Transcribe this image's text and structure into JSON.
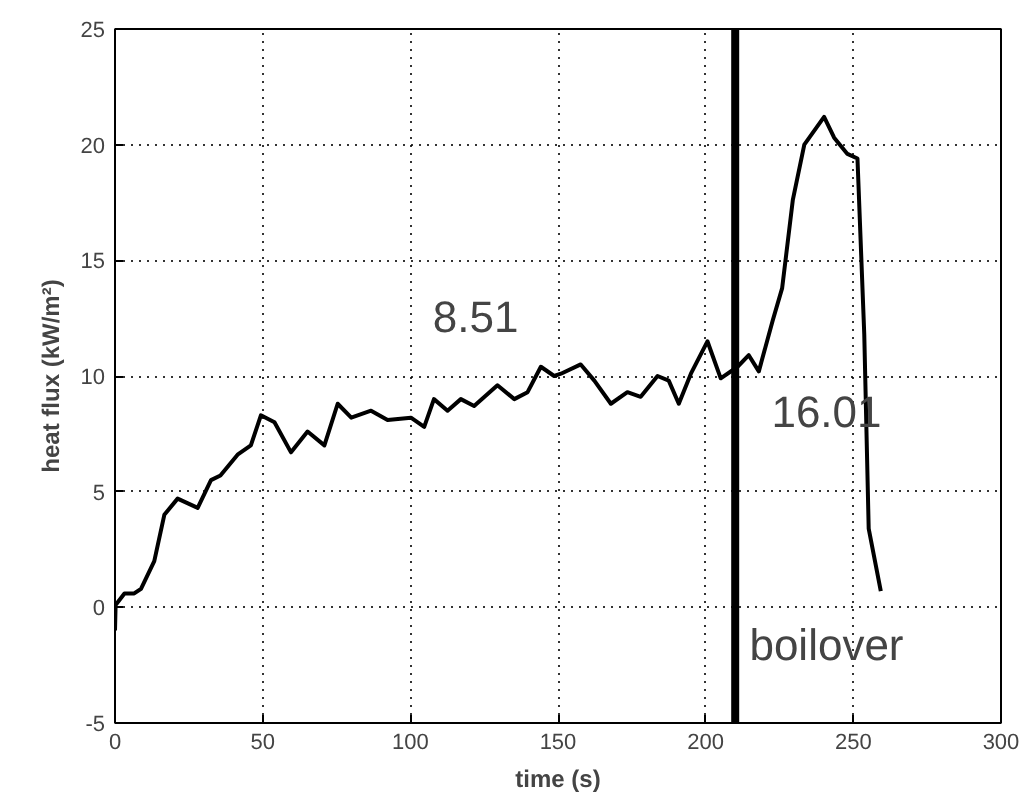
{
  "chart_data": {
    "type": "line",
    "xlabel": "time (s)",
    "ylabel": "heat flux (kW/m²)",
    "xlim": [
      0,
      300
    ],
    "ylim": [
      -5,
      25
    ],
    "xticks": [
      0,
      50,
      100,
      150,
      200,
      250,
      300
    ],
    "yticks": [
      -5,
      0,
      5,
      10,
      15,
      20,
      25
    ],
    "grid": true,
    "line_style": "solid",
    "marker": "none",
    "series": [
      {
        "color": "#000000",
        "x": [
          0,
          0.2,
          3.2,
          6.5,
          8.8,
          13.3,
          16.7,
          21.2,
          28,
          32.5,
          35.7,
          41.5,
          46,
          49.4,
          54,
          59.6,
          65.2,
          70.9,
          75.4,
          80,
          86.7,
          92.3,
          100.2,
          104.7,
          108,
          112.6,
          117.1,
          121.6,
          129.5,
          135.2,
          139.7,
          144.2,
          148.7,
          151,
          157.7,
          162.3,
          167.9,
          173.5,
          178,
          183.7,
          187.5,
          190.9,
          195,
          200.6,
          205.1,
          210.8,
          214.6,
          218,
          222.7,
          225.9,
          229.5,
          233.4,
          240.1,
          243.5,
          248,
          251.4,
          253.7,
          255.2,
          259.3
        ],
        "values": [
          -1.0,
          0.1,
          0.6,
          0.6,
          0.8,
          2.0,
          4.0,
          4.7,
          4.3,
          5.5,
          5.7,
          6.6,
          7.0,
          8.3,
          8.0,
          6.7,
          7.6,
          7.0,
          8.8,
          8.2,
          8.5,
          8.1,
          8.2,
          7.8,
          9.0,
          8.5,
          9.0,
          8.7,
          9.6,
          9.0,
          9.3,
          10.4,
          10.0,
          10.1,
          10.5,
          9.8,
          8.8,
          9.3,
          9.1,
          10.0,
          9.8,
          8.8,
          10.1,
          11.5,
          9.9,
          10.4,
          10.9,
          10.2,
          12.4,
          13.8,
          17.6,
          20.0,
          21.2,
          20.3,
          19.6,
          19.4,
          11.8,
          3.4,
          0.7
        ]
      }
    ],
    "ref_lines": [
      {
        "axis": "x",
        "value": 210,
        "label": null,
        "color": "#000000"
      }
    ],
    "annotations": [
      "8.51",
      "16.01",
      "boilover"
    ]
  }
}
